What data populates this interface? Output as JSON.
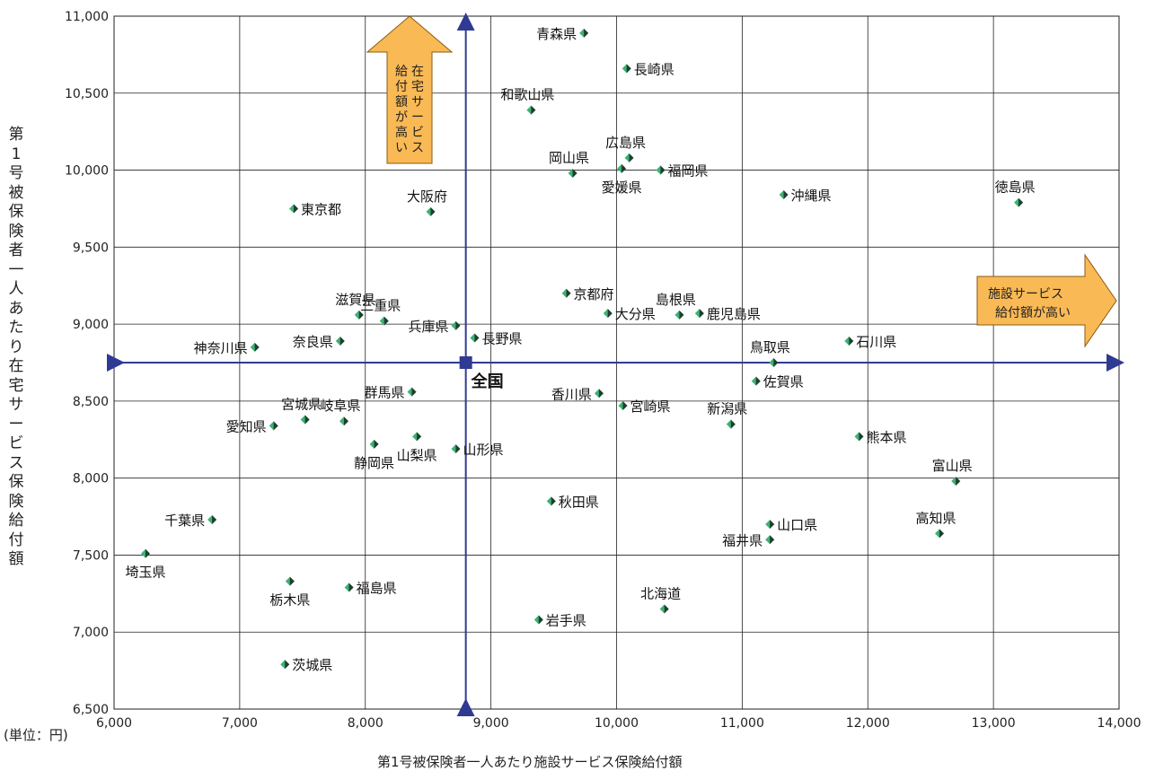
{
  "chart_data": {
    "type": "scatter",
    "ylabel": "第1号被保険者一人あたり在宅サービス保険給付額",
    "xlabel": "第1号被保険者一人あたり施設サービス保険給付額",
    "unit_note": "(単位：円)",
    "xlim": [
      6000,
      14000
    ],
    "ylim": [
      6500,
      11000
    ],
    "x_ticks": [
      "6,000",
      "7,000",
      "8,000",
      "9,000",
      "10,000",
      "11,000",
      "12,000",
      "13,000",
      "14,000"
    ],
    "y_ticks": [
      "6,500",
      "7,000",
      "7,500",
      "8,000",
      "8,500",
      "9,000",
      "9,500",
      "10,000",
      "10,500",
      "11,000"
    ],
    "grid": true,
    "reference": {
      "name": "全国",
      "x": 8800,
      "y": 8750
    },
    "annotations": {
      "up_arrow": "在宅サービス給付額が高い",
      "right_arrow_line1": "施設サービス",
      "right_arrow_line2": "給付額が高い"
    },
    "points": [
      {
        "name": "青森県",
        "x": 9740,
        "y": 10890
      },
      {
        "name": "長崎県",
        "x": 10080,
        "y": 10660
      },
      {
        "name": "和歌山県",
        "x": 9320,
        "y": 10390
      },
      {
        "name": "広島県",
        "x": 10100,
        "y": 10080
      },
      {
        "name": "岡山県",
        "x": 9650,
        "y": 9980
      },
      {
        "name": "愛媛県",
        "x": 10040,
        "y": 10010
      },
      {
        "name": "福岡県",
        "x": 10350,
        "y": 10000
      },
      {
        "name": "沖縄県",
        "x": 11330,
        "y": 9840
      },
      {
        "name": "徳島県",
        "x": 13200,
        "y": 9790
      },
      {
        "name": "東京都",
        "x": 7430,
        "y": 9750
      },
      {
        "name": "大阪府",
        "x": 8520,
        "y": 9730
      },
      {
        "name": "京都府",
        "x": 9600,
        "y": 9200
      },
      {
        "name": "滋賀県",
        "x": 7950,
        "y": 9060
      },
      {
        "name": "三重県",
        "x": 8150,
        "y": 9020
      },
      {
        "name": "大分県",
        "x": 9930,
        "y": 9070
      },
      {
        "name": "島根県",
        "x": 10500,
        "y": 9060
      },
      {
        "name": "鹿児島県",
        "x": 10660,
        "y": 9070
      },
      {
        "name": "兵庫県",
        "x": 8720,
        "y": 8990
      },
      {
        "name": "長野県",
        "x": 8870,
        "y": 8910
      },
      {
        "name": "奈良県",
        "x": 7800,
        "y": 8890
      },
      {
        "name": "石川県",
        "x": 11850,
        "y": 8890
      },
      {
        "name": "神奈川県",
        "x": 7120,
        "y": 8850
      },
      {
        "name": "鳥取県",
        "x": 11250,
        "y": 8750
      },
      {
        "name": "群馬県",
        "x": 8370,
        "y": 8560
      },
      {
        "name": "香川県",
        "x": 9860,
        "y": 8550
      },
      {
        "name": "佐賀県",
        "x": 11110,
        "y": 8630
      },
      {
        "name": "宮崎県",
        "x": 10050,
        "y": 8470
      },
      {
        "name": "宮城県",
        "x": 7520,
        "y": 8380
      },
      {
        "name": "岐阜県",
        "x": 7830,
        "y": 8370
      },
      {
        "name": "新潟県",
        "x": 10910,
        "y": 8350
      },
      {
        "name": "愛知県",
        "x": 7270,
        "y": 8340
      },
      {
        "name": "熊本県",
        "x": 11930,
        "y": 8270
      },
      {
        "name": "山梨県",
        "x": 8410,
        "y": 8270
      },
      {
        "name": "静岡県",
        "x": 8070,
        "y": 8220
      },
      {
        "name": "山形県",
        "x": 8720,
        "y": 8190
      },
      {
        "name": "富山県",
        "x": 12700,
        "y": 7980
      },
      {
        "name": "秋田県",
        "x": 9480,
        "y": 7850
      },
      {
        "name": "千葉県",
        "x": 6780,
        "y": 7730
      },
      {
        "name": "山口県",
        "x": 11220,
        "y": 7700
      },
      {
        "name": "高知県",
        "x": 12570,
        "y": 7640
      },
      {
        "name": "福井県",
        "x": 11220,
        "y": 7600
      },
      {
        "name": "埼玉県",
        "x": 6250,
        "y": 7510
      },
      {
        "name": "栃木県",
        "x": 7400,
        "y": 7330
      },
      {
        "name": "福島県",
        "x": 7870,
        "y": 7290
      },
      {
        "name": "北海道",
        "x": 10380,
        "y": 7150
      },
      {
        "name": "岩手県",
        "x": 9380,
        "y": 7080
      },
      {
        "name": "茨城県",
        "x": 7360,
        "y": 6790
      }
    ]
  },
  "colors": {
    "grid": "#222222",
    "refline": "#2f3a93",
    "national": "#2f3a93",
    "marker_light": "#3cb371",
    "marker_dark": "#1f3d2f",
    "arrow_fill": "#f9b954",
    "arrow_stroke": "#8a5a12"
  }
}
